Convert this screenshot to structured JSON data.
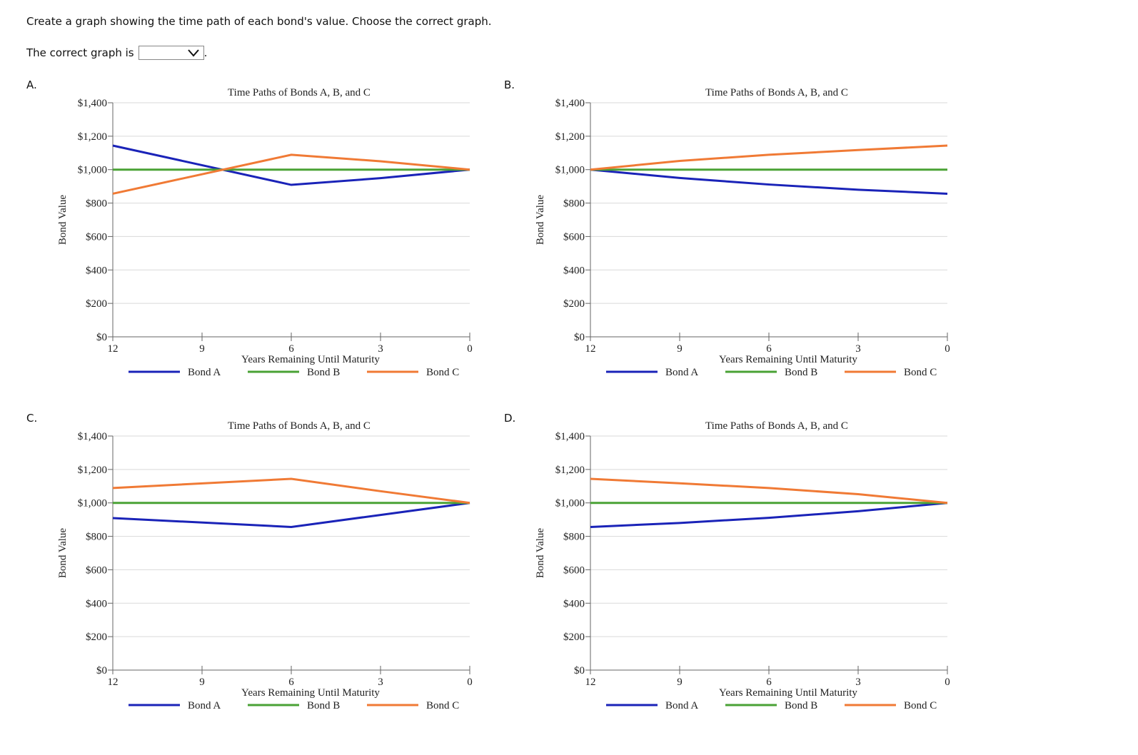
{
  "question": "Create a graph showing the time path of each bond's value. Choose the correct graph.",
  "prompt_prefix": "The correct graph is",
  "prompt_suffix": ".",
  "dropdown": {
    "selected": "",
    "icon": "chevron-down-icon"
  },
  "colors": {
    "bond_a": "#1a23b8",
    "bond_b": "#4aa235",
    "bond_c": "#f07a35",
    "grid": "#d9d9d9"
  },
  "chart_data": [
    {
      "option": "A.",
      "type": "line",
      "title": "Time Paths of Bonds A, B, and C",
      "xlabel": "Years Remaining Until Maturity",
      "ylabel": "Bond Value",
      "xlim": [
        12,
        0
      ],
      "ylim": [
        0,
        1400
      ],
      "xticks": [
        "12",
        "9",
        "6",
        "3",
        "0"
      ],
      "yticks": [
        "$0",
        "$200",
        "$400",
        "$600",
        "$800",
        "$1,000",
        "$1,200",
        "$1,400"
      ],
      "grid": true,
      "legend": "bottom",
      "series": [
        {
          "name": "Bond A",
          "x": [
            12,
            6,
            3,
            0
          ],
          "y": [
            1144,
            909,
            949,
            1000
          ]
        },
        {
          "name": "Bond B",
          "x": [
            12,
            0
          ],
          "y": [
            1000,
            1000
          ]
        },
        {
          "name": "Bond C",
          "x": [
            12,
            6,
            3,
            0
          ],
          "y": [
            856,
            1089,
            1050,
            1000
          ]
        }
      ]
    },
    {
      "option": "B.",
      "type": "line",
      "title": "Time Paths of Bonds A, B, and C",
      "xlabel": "Years Remaining Until Maturity",
      "ylabel": "Bond Value",
      "xlim": [
        12,
        0
      ],
      "ylim": [
        0,
        1400
      ],
      "xticks": [
        "12",
        "9",
        "6",
        "3",
        "0"
      ],
      "yticks": [
        "$0",
        "$200",
        "$400",
        "$600",
        "$800",
        "$1,000",
        "$1,200",
        "$1,400"
      ],
      "grid": true,
      "legend": "bottom",
      "series": [
        {
          "name": "Bond A",
          "x": [
            12,
            9,
            6,
            3,
            0
          ],
          "y": [
            1000,
            950,
            911,
            880,
            856
          ]
        },
        {
          "name": "Bond B",
          "x": [
            12,
            0
          ],
          "y": [
            1000,
            1000
          ]
        },
        {
          "name": "Bond C",
          "x": [
            12,
            9,
            6,
            3,
            0
          ],
          "y": [
            1000,
            1052,
            1089,
            1117,
            1144
          ]
        }
      ]
    },
    {
      "option": "C.",
      "type": "line",
      "title": "Time Paths of Bonds A, B, and C",
      "xlabel": "Years Remaining Until Maturity",
      "ylabel": "Bond Value",
      "xlim": [
        12,
        0
      ],
      "ylim": [
        0,
        1400
      ],
      "xticks": [
        "12",
        "9",
        "6",
        "3",
        "0"
      ],
      "yticks": [
        "$0",
        "$200",
        "$400",
        "$600",
        "$800",
        "$1,000",
        "$1,200",
        "$1,400"
      ],
      "grid": true,
      "legend": "bottom",
      "series": [
        {
          "name": "Bond A",
          "x": [
            12,
            6,
            3,
            0
          ],
          "y": [
            909,
            856,
            928,
            1000
          ]
        },
        {
          "name": "Bond B",
          "x": [
            12,
            0
          ],
          "y": [
            1000,
            1000
          ]
        },
        {
          "name": "Bond C",
          "x": [
            12,
            6,
            3,
            0
          ],
          "y": [
            1089,
            1144,
            1070,
            1000
          ]
        }
      ]
    },
    {
      "option": "D.",
      "type": "line",
      "title": "Time Paths of Bonds A, B, and C",
      "xlabel": "Years Remaining Until Maturity",
      "ylabel": "Bond Value",
      "xlim": [
        12,
        0
      ],
      "ylim": [
        0,
        1400
      ],
      "xticks": [
        "12",
        "9",
        "6",
        "3",
        "0"
      ],
      "yticks": [
        "$0",
        "$200",
        "$400",
        "$600",
        "$800",
        "$1,000",
        "$1,200",
        "$1,400"
      ],
      "grid": true,
      "legend": "bottom",
      "series": [
        {
          "name": "Bond A",
          "x": [
            12,
            9,
            6,
            3,
            0
          ],
          "y": [
            856,
            880,
            911,
            950,
            1000
          ]
        },
        {
          "name": "Bond B",
          "x": [
            12,
            0
          ],
          "y": [
            1000,
            1000
          ]
        },
        {
          "name": "Bond C",
          "x": [
            12,
            9,
            6,
            3,
            0
          ],
          "y": [
            1144,
            1117,
            1089,
            1052,
            1000
          ]
        }
      ]
    }
  ]
}
